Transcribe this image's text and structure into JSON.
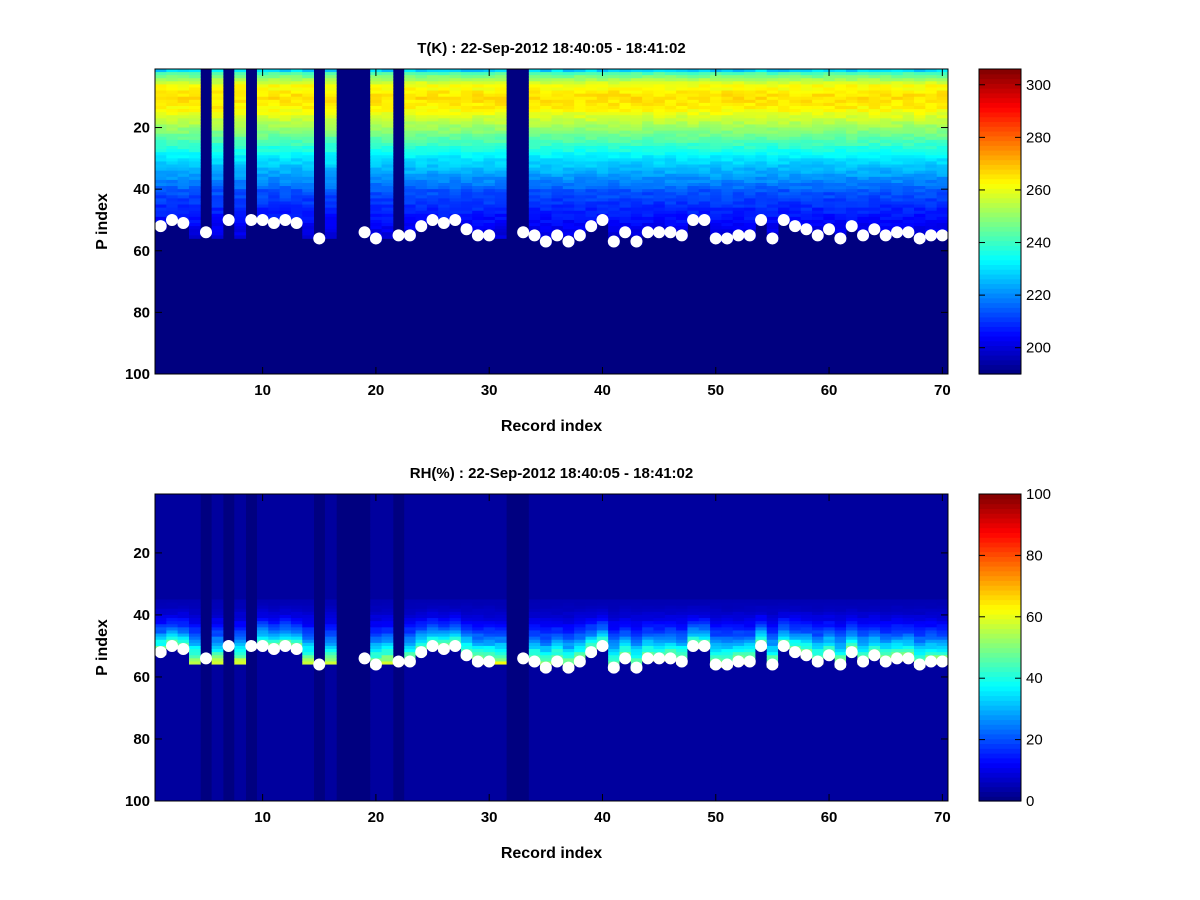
{
  "chart_data": [
    {
      "type": "heatmap",
      "title": "T(K) : 22-Sep-2012 18:40:05 - 18:41:02",
      "xlabel": "Record index",
      "ylabel": "P index",
      "xlim": [
        0.5,
        70.5
      ],
      "ylim": [
        1,
        100
      ],
      "y_reversed": true,
      "xticks": [
        10,
        20,
        30,
        40,
        50,
        60,
        70
      ],
      "yticks": [
        20,
        40,
        60,
        80,
        100
      ],
      "colorbar": {
        "min": 190,
        "max": 306,
        "ticks": [
          200,
          220,
          240,
          260,
          280,
          300
        ]
      },
      "colormap": "jet",
      "field": "temperature",
      "empty_records": [
        5,
        7,
        9,
        15,
        17,
        18,
        19,
        22,
        32,
        33
      ],
      "marker_p_index": [
        52,
        50,
        51,
        null,
        54,
        null,
        50,
        null,
        50,
        50,
        51,
        50,
        51,
        null,
        56,
        null,
        null,
        null,
        54,
        56,
        null,
        55,
        55,
        52,
        50,
        51,
        50,
        53,
        55,
        55,
        null,
        null,
        54,
        55,
        57,
        55,
        57,
        55,
        52,
        50,
        57,
        54,
        57,
        54,
        54,
        54,
        55,
        50,
        50,
        56,
        56,
        55,
        55,
        50,
        56,
        50,
        52,
        53,
        55,
        53,
        56,
        52,
        55,
        53,
        55,
        54,
        54,
        56,
        55,
        55
      ],
      "marker_color": "#ffffff"
    },
    {
      "type": "heatmap",
      "title": "RH(%) : 22-Sep-2012 18:40:05 - 18:41:02",
      "xlabel": "Record index",
      "ylabel": "P index",
      "xlim": [
        0.5,
        70.5
      ],
      "ylim": [
        1,
        100
      ],
      "y_reversed": true,
      "xticks": [
        10,
        20,
        30,
        40,
        50,
        60,
        70
      ],
      "yticks": [
        20,
        40,
        60,
        80,
        100
      ],
      "colorbar": {
        "min": 0,
        "max": 100,
        "ticks": [
          0,
          20,
          40,
          60,
          80,
          100
        ]
      },
      "colormap": "jet",
      "field": "relative_humidity",
      "empty_records": [
        5,
        7,
        9,
        15,
        17,
        18,
        19,
        22,
        32,
        33
      ],
      "marker_p_index": [
        52,
        50,
        51,
        null,
        54,
        null,
        50,
        null,
        50,
        50,
        51,
        50,
        51,
        null,
        56,
        null,
        null,
        null,
        54,
        56,
        null,
        55,
        55,
        52,
        50,
        51,
        50,
        53,
        55,
        55,
        null,
        null,
        54,
        55,
        57,
        55,
        57,
        55,
        52,
        50,
        57,
        54,
        57,
        54,
        54,
        54,
        55,
        50,
        50,
        56,
        56,
        55,
        55,
        50,
        56,
        50,
        52,
        53,
        55,
        53,
        56,
        52,
        55,
        53,
        55,
        54,
        54,
        56,
        55,
        55
      ],
      "marker_color": "#ffffff"
    }
  ]
}
